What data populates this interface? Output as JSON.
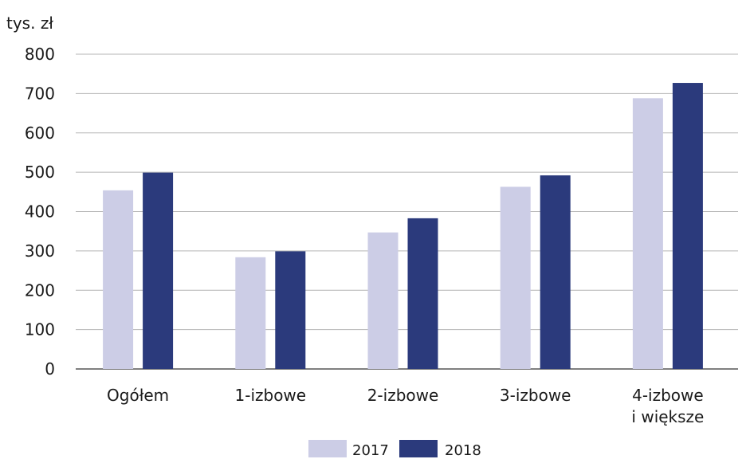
{
  "chart_data": {
    "type": "bar",
    "unit_label": "tys. zł",
    "categories": [
      [
        "Ogółem"
      ],
      [
        "1-izbowe"
      ],
      [
        "2-izbowe"
      ],
      [
        "3-izbowe"
      ],
      [
        "4-izbowe",
        "i większe"
      ]
    ],
    "series": [
      {
        "name": "2017",
        "color": "#cccde6",
        "values": [
          454,
          284,
          347,
          463,
          688
        ]
      },
      {
        "name": "2018",
        "color": "#2b3a7c",
        "values": [
          499,
          299,
          383,
          492,
          727
        ]
      }
    ],
    "ylim": [
      0,
      800
    ],
    "yticks": [
      0,
      100,
      200,
      300,
      400,
      500,
      600,
      700,
      800
    ],
    "grid": true,
    "legend_position": "bottom-center"
  }
}
